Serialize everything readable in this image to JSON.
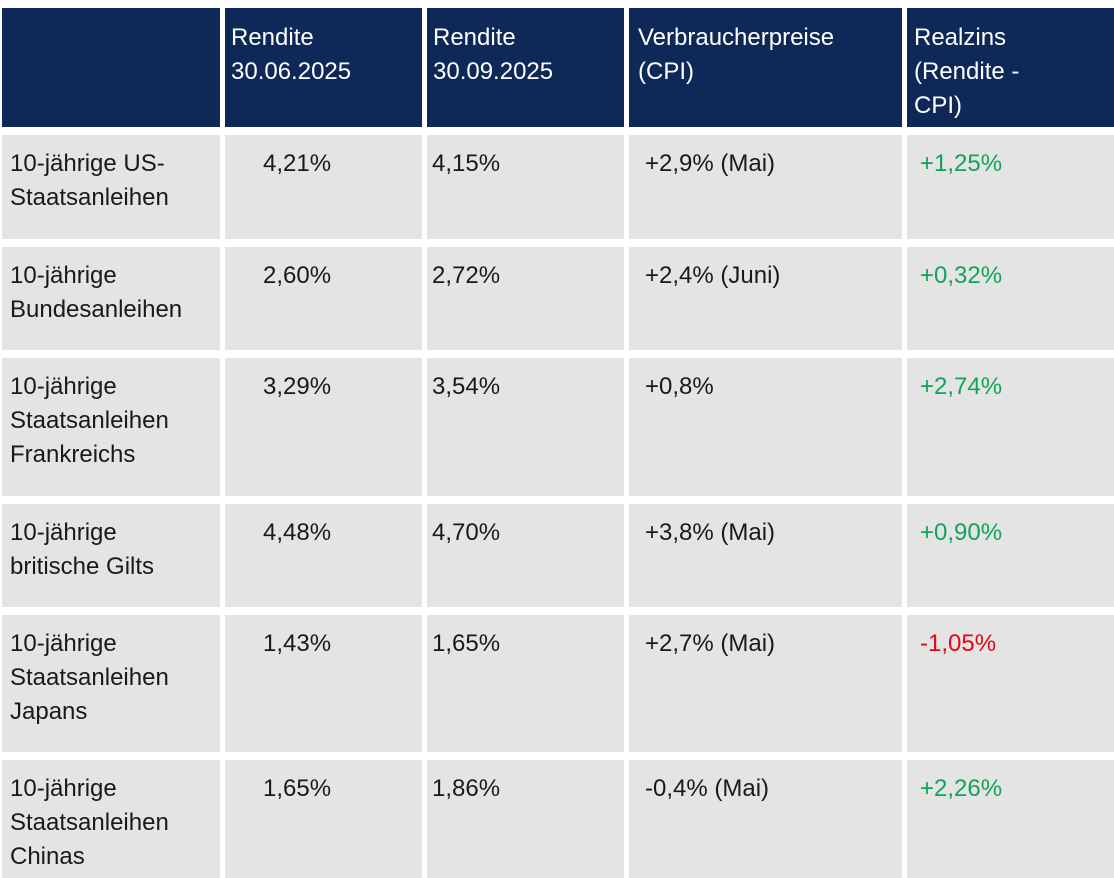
{
  "colors": {
    "header_bg": "#0e2857",
    "header_text": "#ffffff",
    "row_bg": "#e4e4e4",
    "body_text": "#191919",
    "positive": "#11a457",
    "negative": "#e30613"
  },
  "table": {
    "headers": {
      "asset": "",
      "rendite_jun": "Rendite\n30.06.2025",
      "rendite_sep": "Rendite\n30.09.2025",
      "cpi": "Verbraucherpreise\n(CPI)",
      "realzins": "Realzins\n(Rendite -\nCPI)"
    },
    "rows": [
      {
        "name": "10-jährige US-\nStaatsanleihen",
        "rendite_jun": "4,21%",
        "rendite_sep": "4,15%",
        "cpi": "+2,9% (Mai)",
        "realzins": "+1,25%",
        "realzins_color": "#11a457"
      },
      {
        "name": "10-jährige\nBundesanleihen",
        "rendite_jun": "2,60%",
        "rendite_sep": "2,72%",
        "cpi": "+2,4% (Juni)",
        "realzins": "+0,32%",
        "realzins_color": "#11a457"
      },
      {
        "name": "10-jährige\nStaatsanleihen\nFrankreichs",
        "rendite_jun": "3,29%",
        "rendite_sep": "3,54%",
        "cpi": "+0,8%",
        "realzins": "+2,74%",
        "realzins_color": "#11a457"
      },
      {
        "name": "10-jährige\nbritische Gilts",
        "rendite_jun": "4,48%",
        "rendite_sep": "4,70%",
        "cpi": "+3,8% (Mai)",
        "realzins": "+0,90%",
        "realzins_color": "#11a457"
      },
      {
        "name": "10-jährige\nStaatsanleihen\nJapans",
        "rendite_jun": "1,43%",
        "rendite_sep": "1,65%",
        "cpi": "+2,7% (Mai)",
        "realzins": "-1,05%",
        "realzins_color": "#e30613"
      },
      {
        "name": "10-jährige\nStaatsanleihen\nChinas",
        "rendite_jun": "1,65%",
        "rendite_sep": "1,86%",
        "cpi": "-0,4% (Mai)",
        "realzins": "+2,26%",
        "realzins_color": "#11a457"
      }
    ]
  },
  "chart_data": {
    "type": "table",
    "columns": [
      "",
      "Rendite 30.06.2025",
      "Rendite 30.09.2025",
      "Verbraucherpreise (CPI)",
      "Realzins (Rendite - CPI)"
    ],
    "rows": [
      [
        "10-jährige US-Staatsanleihen",
        "4,21%",
        "4,15%",
        "+2,9% (Mai)",
        "+1,25%"
      ],
      [
        "10-jährige Bundesanleihen",
        "2,60%",
        "2,72%",
        "+2,4% (Juni)",
        "+0,32%"
      ],
      [
        "10-jährige Staatsanleihen Frankreichs",
        "3,29%",
        "3,54%",
        "+0,8%",
        "+2,74%"
      ],
      [
        "10-jährige britische Gilts",
        "4,48%",
        "4,70%",
        "+3,8% (Mai)",
        "+0,90%"
      ],
      [
        "10-jährige Staatsanleihen Japans",
        "1,43%",
        "1,65%",
        "+2,7% (Mai)",
        "-1,05%"
      ],
      [
        "10-jährige Staatsanleihen Chinas",
        "1,65%",
        "1,86%",
        "-0,4% (Mai)",
        "+2,26%"
      ]
    ]
  }
}
